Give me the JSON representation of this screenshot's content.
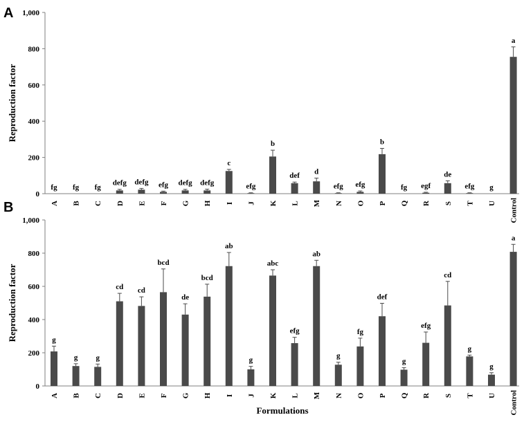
{
  "x_title": "Formulations",
  "chart_data": [
    {
      "type": "bar",
      "panel": "A",
      "ylabel": "Reproduction factor",
      "ylim": [
        0,
        1000
      ],
      "yticks": [
        "0",
        "200",
        "400",
        "600",
        "800",
        "1,000"
      ],
      "categories": [
        "A",
        "B",
        "C",
        "D",
        "E",
        "F",
        "G",
        "H",
        "I",
        "J",
        "K",
        "L",
        "M",
        "N",
        "O",
        "P",
        "Q",
        "R",
        "S",
        "T",
        "U",
        "Control"
      ],
      "values": [
        0,
        0,
        0,
        18,
        22,
        10,
        18,
        18,
        125,
        3,
        205,
        58,
        68,
        3,
        10,
        218,
        0,
        5,
        58,
        3,
        0,
        755
      ],
      "errors": [
        0,
        0,
        0,
        6,
        7,
        4,
        6,
        7,
        9,
        2,
        35,
        6,
        18,
        2,
        5,
        32,
        0,
        3,
        13,
        2,
        0,
        55
      ],
      "letters": [
        "fg",
        "fg",
        "fg",
        "defg",
        "defg",
        "efg",
        "defg",
        "defg",
        "c",
        "efg",
        "b",
        "def",
        "d",
        "efg",
        "efg",
        "b",
        "fg",
        "egf",
        "de",
        "efg",
        "g",
        "a"
      ]
    },
    {
      "type": "bar",
      "panel": "B",
      "ylabel": "Reproduction factor",
      "xlabel": "Formulations",
      "ylim": [
        0,
        1000
      ],
      "yticks": [
        "0",
        "200",
        "400",
        "600",
        "800",
        "1,000"
      ],
      "categories": [
        "A",
        "B",
        "C",
        "D",
        "E",
        "F",
        "G",
        "H",
        "I",
        "J",
        "K",
        "L",
        "M",
        "N",
        "O",
        "P",
        "Q",
        "R",
        "S",
        "T",
        "U",
        "Control"
      ],
      "values": [
        208,
        120,
        115,
        510,
        482,
        565,
        430,
        538,
        722,
        100,
        665,
        258,
        722,
        128,
        238,
        420,
        98,
        260,
        485,
        178,
        68,
        808
      ],
      "errors": [
        32,
        14,
        17,
        48,
        55,
        140,
        65,
        75,
        82,
        18,
        35,
        35,
        35,
        15,
        50,
        78,
        12,
        65,
        145,
        8,
        12,
        45
      ],
      "letters": [
        "g",
        "g",
        "g",
        "cd",
        "cd",
        "bcd",
        "de",
        "bcd",
        "ab",
        "g",
        "abc",
        "efg",
        "ab",
        "g",
        "fg",
        "def",
        "g",
        "efg",
        "cd",
        "g",
        "g",
        "a"
      ]
    }
  ]
}
